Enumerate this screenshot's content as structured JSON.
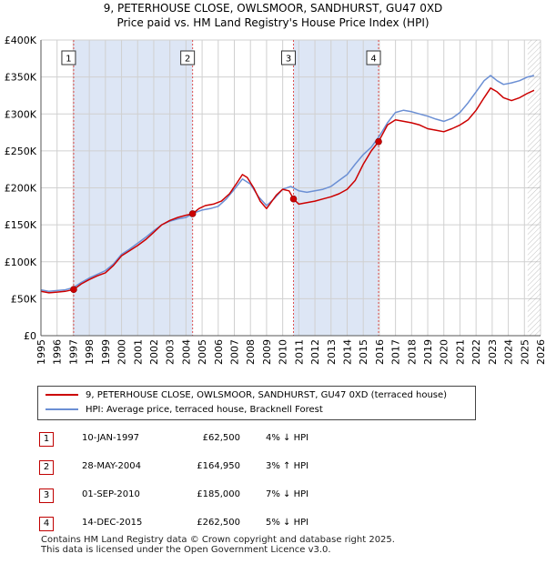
{
  "header": {
    "title_line1": "9, PETERHOUSE CLOSE, OWLSMOOR, SANDHURST, GU47 0XD",
    "title_line2": "Price paid vs. HM Land Registry's House Price Index (HPI)"
  },
  "chart_data": {
    "type": "line",
    "x_range": [
      1995,
      2026
    ],
    "ylim": [
      0,
      400000
    ],
    "y_ticks": [
      {
        "value": 0,
        "label": "£0"
      },
      {
        "value": 50000,
        "label": "£50K"
      },
      {
        "value": 100000,
        "label": "£100K"
      },
      {
        "value": 150000,
        "label": "£150K"
      },
      {
        "value": 200000,
        "label": "£200K"
      },
      {
        "value": 250000,
        "label": "£250K"
      },
      {
        "value": 300000,
        "label": "£300K"
      },
      {
        "value": 350000,
        "label": "£350K"
      },
      {
        "value": 400000,
        "label": "£400K"
      }
    ],
    "x_ticks": [
      1995,
      1996,
      1997,
      1998,
      1999,
      2000,
      2001,
      2002,
      2003,
      2004,
      2005,
      2006,
      2007,
      2008,
      2009,
      2010,
      2011,
      2012,
      2013,
      2014,
      2015,
      2016,
      2017,
      2018,
      2019,
      2020,
      2021,
      2022,
      2023,
      2024,
      2025,
      2026
    ],
    "grid": true,
    "colors": {
      "price": "#cc0000",
      "hpi": "#6b8fd4",
      "shade": "#dde6f5",
      "vline": "#e05050",
      "grid": "#d0d0d0",
      "hatch": "#999999"
    },
    "hatch_from": 2025.2,
    "shaded_ranges": [
      [
        1997.03,
        2004.41
      ],
      [
        2010.67,
        2015.95
      ]
    ],
    "sales": [
      {
        "label": "1",
        "x": 1997.03,
        "y": 62500
      },
      {
        "label": "2",
        "x": 2004.41,
        "y": 164950
      },
      {
        "label": "3",
        "x": 2010.67,
        "y": 185000
      },
      {
        "label": "4",
        "x": 2015.95,
        "y": 262500
      }
    ],
    "series": [
      {
        "name": "9, PETERHOUSE CLOSE, OWLSMOOR, SANDHURST, GU47 0XD (terraced house)",
        "color": "#cc0000",
        "x": [
          1995,
          1995.5,
          1996,
          1996.5,
          1997.03,
          1997.5,
          1998,
          1998.5,
          1999,
          1999.5,
          2000,
          2000.5,
          2001,
          2001.5,
          2002,
          2002.5,
          2003,
          2003.5,
          2004,
          2004.41,
          2004.8,
          2005.2,
          2005.7,
          2006.2,
          2006.7,
          2007.2,
          2007.5,
          2007.8,
          2008.2,
          2008.6,
          2009,
          2009.2,
          2009.6,
          2010,
          2010.4,
          2010.67,
          2011,
          2011.5,
          2012,
          2012.5,
          2013,
          2013.5,
          2014,
          2014.5,
          2015,
          2015.5,
          2015.95,
          2016.5,
          2017,
          2017.5,
          2018,
          2018.5,
          2019,
          2019.5,
          2020,
          2020.5,
          2021,
          2021.5,
          2022,
          2022.5,
          2022.9,
          2023.3,
          2023.7,
          2024.2,
          2024.7,
          2025.2,
          2025.6
        ],
        "y": [
          60000,
          58000,
          59000,
          60000,
          62500,
          70000,
          76000,
          81000,
          85000,
          95000,
          108000,
          115000,
          122000,
          130000,
          140000,
          150000,
          156000,
          160000,
          163000,
          164950,
          172000,
          176000,
          178000,
          182000,
          192000,
          208000,
          218000,
          214000,
          200000,
          182000,
          172000,
          178000,
          190000,
          198000,
          196000,
          185000,
          178000,
          180000,
          182000,
          185000,
          188000,
          192000,
          198000,
          210000,
          232000,
          250000,
          262500,
          285000,
          292000,
          290000,
          288000,
          285000,
          280000,
          278000,
          276000,
          280000,
          285000,
          292000,
          305000,
          322000,
          335000,
          330000,
          322000,
          318000,
          322000,
          328000,
          332000
        ]
      },
      {
        "name": "HPI: Average price, terraced house, Bracknell Forest",
        "color": "#6b8fd4",
        "x": [
          1995,
          1995.5,
          1996,
          1996.5,
          1997,
          1997.5,
          1998,
          1998.5,
          1999,
          1999.5,
          2000,
          2000.5,
          2001,
          2001.5,
          2002,
          2002.5,
          2003,
          2003.5,
          2004,
          2004.5,
          2005,
          2005.5,
          2006,
          2006.5,
          2007,
          2007.5,
          2008,
          2008.5,
          2009,
          2009.5,
          2010,
          2010.5,
          2011,
          2011.5,
          2012,
          2012.5,
          2013,
          2013.5,
          2014,
          2014.5,
          2015,
          2015.5,
          2016,
          2016.5,
          2017,
          2017.5,
          2018,
          2018.5,
          2019,
          2019.5,
          2020,
          2020.5,
          2021,
          2021.5,
          2022,
          2022.5,
          2022.9,
          2023.3,
          2023.7,
          2024.2,
          2024.7,
          2025.2,
          2025.6
        ],
        "y": [
          62000,
          60000,
          61000,
          62000,
          65000,
          72000,
          78000,
          83000,
          88000,
          97000,
          110000,
          117000,
          125000,
          133000,
          142000,
          150000,
          155000,
          158000,
          160000,
          166000,
          170000,
          172000,
          175000,
          185000,
          198000,
          212000,
          205000,
          188000,
          176000,
          186000,
          198000,
          202000,
          196000,
          194000,
          196000,
          198000,
          202000,
          210000,
          218000,
          232000,
          245000,
          255000,
          270000,
          288000,
          302000,
          305000,
          303000,
          300000,
          297000,
          293000,
          290000,
          294000,
          302000,
          315000,
          330000,
          345000,
          352000,
          345000,
          340000,
          342000,
          345000,
          350000,
          352000
        ]
      }
    ]
  },
  "legend": {
    "price_label": "9, PETERHOUSE CLOSE, OWLSMOOR, SANDHURST, GU47 0XD (terraced house)",
    "hpi_label": "HPI: Average price, terraced house, Bracknell Forest"
  },
  "transactions": [
    {
      "num": "1",
      "date": "10-JAN-1997",
      "price": "£62,500",
      "hpi": "4% ↓ HPI"
    },
    {
      "num": "2",
      "date": "28-MAY-2004",
      "price": "£164,950",
      "hpi": "3% ↑ HPI"
    },
    {
      "num": "3",
      "date": "01-SEP-2010",
      "price": "£185,000",
      "hpi": "7% ↓ HPI"
    },
    {
      "num": "4",
      "date": "14-DEC-2015",
      "price": "£262,500",
      "hpi": "5% ↓ HPI"
    }
  ],
  "footer": {
    "line1": "Contains HM Land Registry data © Crown copyright and database right 2025.",
    "line2": "This data is licensed under the Open Government Licence v3.0."
  }
}
